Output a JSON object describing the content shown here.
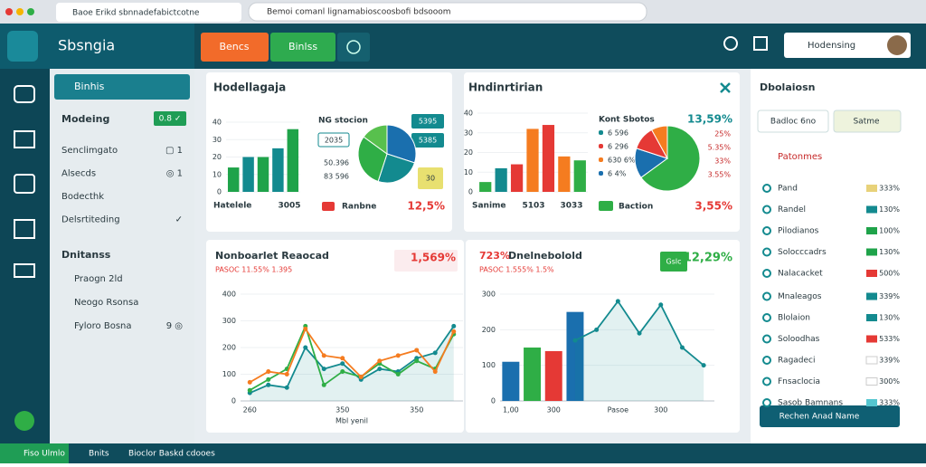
{
  "browser": {
    "tab": "Baoe Erikd sbnnadefabictcotne",
    "url": "Bemoi comanl lignamabioscoosbofi bdsooom"
  },
  "header": {
    "brand": "Sbsngia",
    "buttons": [
      "Bencs",
      "Binlss"
    ],
    "search": "Hodensing"
  },
  "sidebar": {
    "selected": "Binhis",
    "section1": "Modeing",
    "badge": "0.8 ✓",
    "items1": [
      {
        "label": "Senclimgato",
        "value": "▢ 1"
      },
      {
        "label": "Alsecds",
        "value": "◎ 1"
      },
      {
        "label": "Bodecthk",
        "value": ""
      },
      {
        "label": "Delsrtiteding",
        "value": "✓"
      }
    ],
    "section2": "Dnitanss",
    "items2": [
      {
        "label": "Praogn 2ld",
        "value": ""
      },
      {
        "label": "Neogo Rsonsa",
        "value": ""
      },
      {
        "label": "Fyloro Bosna",
        "value": "9 ◎"
      }
    ]
  },
  "cards": [
    {
      "title": "Hodellagaja",
      "bar": {
        "values": [
          14,
          20,
          20,
          25,
          36
        ],
        "colors": [
          "#1fa34a",
          "#138a8f",
          "#1fa34a",
          "#138a8f",
          "#1fa34a"
        ],
        "ylim": [
          0,
          40
        ],
        "yticks": [
          0,
          10,
          20,
          30,
          40
        ]
      },
      "pie": {
        "values": [
          30,
          25,
          30,
          15
        ],
        "colors": [
          "#1a6fae",
          "#138a8f",
          "#2fae46",
          "#58c04d"
        ]
      },
      "texts": {
        "foot_left": "Hatelele",
        "foot_mid": "3005",
        "stat": "NG stocion",
        "box1": "5395",
        "box2": "2035",
        "box3": "5385",
        "row1": "50.396",
        "row2": "83 596",
        "badge": "30",
        "legend": "Ranbne",
        "pct": "12,5%"
      }
    },
    {
      "title": "Hndinrtirian",
      "bar": {
        "values": [
          5,
          12,
          14,
          32,
          34,
          18,
          16
        ],
        "colors": [
          "#2fae46",
          "#138a8f",
          "#e53935",
          "#f57c20",
          "#e53935",
          "#f57c20",
          "#2fae46"
        ],
        "ylim": [
          0,
          40
        ],
        "yticks": [
          0,
          10,
          20,
          30,
          40
        ]
      },
      "pie": {
        "values": [
          65,
          15,
          12,
          8
        ],
        "colors": [
          "#2fae46",
          "#1a6fae",
          "#e53935",
          "#f57c20"
        ]
      },
      "texts": {
        "foot_left": "Sanime",
        "foot_mid": "5103",
        "foot_right": "3033",
        "stat": "Kont Sbotos",
        "rows": [
          "6 596",
          "6 296",
          "630 6%",
          "6 4%"
        ],
        "pct_top": "13,59%",
        "pcts": [
          "25%",
          "5.35%",
          "33%",
          "3.55%"
        ],
        "legend": "Baction",
        "pct": "3,55%"
      }
    },
    {
      "title": "Nonboarlet Reaocad",
      "sub": "PASOC 11.55% 1.395",
      "pct": "1,569%",
      "line": {
        "categories": [
          "260",
          null,
          null,
          null,
          null,
          "350",
          null,
          null,
          null,
          "350",
          null,
          null
        ],
        "ylim": [
          0,
          400
        ],
        "yticks": [
          0,
          100,
          200,
          300,
          400
        ],
        "xlabel": "Mbl yenil",
        "lines": [
          {
            "color": "#138a8f",
            "area": true,
            "values": [
              30,
              60,
              50,
              200,
              120,
              140,
              80,
              120,
              110,
              160,
              180,
              280
            ]
          },
          {
            "color": "#2fae46",
            "values": [
              40,
              80,
              120,
              280,
              60,
              110,
              90,
              140,
              100,
              150,
              120,
              250
            ]
          },
          {
            "color": "#f57c20",
            "values": [
              70,
              110,
              100,
              270,
              170,
              160,
              90,
              150,
              170,
              190,
              110,
              260
            ]
          }
        ]
      }
    },
    {
      "title": "Dnelnebolold",
      "sub": "PASOC 1.555% 1.5%",
      "pct_left": "723%",
      "badge": "Gslc",
      "pct": "12,29%",
      "line": {
        "categories": [
          "1,00",
          null,
          "300",
          null,
          null,
          "Pasoe",
          null,
          "300",
          null,
          null
        ],
        "ylim": [
          0,
          300
        ],
        "yticks": [
          0,
          100,
          200,
          300
        ],
        "xlabel": "",
        "bars": {
          "values": [
            110,
            150,
            140,
            250
          ],
          "colors": [
            "#1a6fae",
            "#2fae46",
            "#e53935",
            "#1a6fae"
          ]
        },
        "lines": [
          {
            "color": "#138a8f",
            "area": true,
            "values": [
              null,
              null,
              null,
              170,
              200,
              280,
              190,
              270,
              150,
              100
            ]
          }
        ]
      }
    }
  ],
  "panel": {
    "title": "Dbolaiosn",
    "btn1": "Badloc 6no",
    "btn2": "Satme",
    "section": "Patonmes",
    "items": [
      {
        "label": "Pand",
        "color": "#e8d27a",
        "pct": "333%"
      },
      {
        "label": "Randel",
        "color": "#138a8f",
        "pct": "130%"
      },
      {
        "label": "Pilodianos",
        "color": "#1fa34a",
        "pct": "100%"
      },
      {
        "label": "Solocccadrs",
        "color": "#1fa34a",
        "pct": "130%"
      },
      {
        "label": "Nalacacket",
        "color": "#e53935",
        "pct": "500%"
      },
      {
        "label": "Mnaleagos",
        "color": "#138a8f",
        "pct": "339%"
      },
      {
        "label": "Blolaion",
        "color": "#138a8f",
        "pct": "130%"
      },
      {
        "label": "Soloodhas",
        "color": "#e53935",
        "pct": "533%"
      },
      {
        "label": "Ragadeci",
        "color": "#ffffff",
        "pct": "339%"
      },
      {
        "label": "Fnsaclocia",
        "color": "#ffffff",
        "pct": "300%"
      },
      {
        "label": "Sasob Bamnans",
        "color": "#55c6d0",
        "pct": "333%"
      }
    ],
    "action": "Rechen Anad Name"
  },
  "status": [
    "Fiso Ulmlo",
    "Bnits",
    "Bioclor Baskd cdooes"
  ]
}
